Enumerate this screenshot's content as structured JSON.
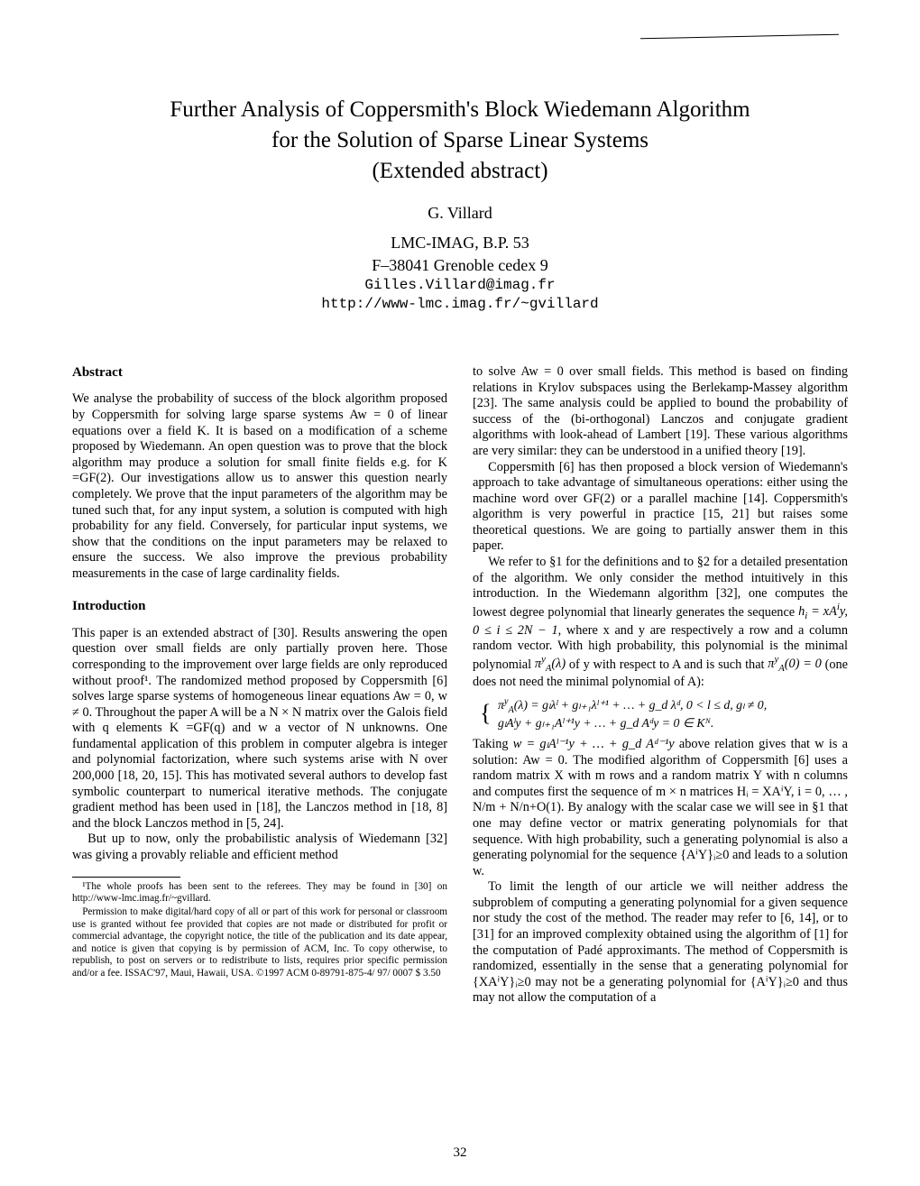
{
  "title": {
    "line1": "Further Analysis of Coppersmith's Block Wiedemann Algorithm",
    "line2": "for the Solution of Sparse Linear Systems",
    "line3": "(Extended abstract)"
  },
  "author": "G. Villard",
  "affiliation": {
    "line1": "LMC-IMAG, B.P. 53",
    "line2": "F–38041 Grenoble cedex 9",
    "email": "Gilles.Villard@imag.fr",
    "url": "http://www-lmc.imag.fr/~gvillard"
  },
  "left": {
    "abstract_heading": "Abstract",
    "abstract_p1": "We analyse the probability of success of the block algorithm proposed by Coppersmith for solving large sparse systems Aw = 0 of linear equations over a field K. It is based on a modification of a scheme proposed by Wiedemann. An open question was to prove that the block algorithm may produce a solution for small finite fields e.g. for K =GF(2). Our investigations allow us to answer this question nearly completely. We prove that the input parameters of the algorithm may be tuned such that, for any input system, a solution is computed with high probability for any field. Conversely, for particular input systems, we show that the conditions on the input parameters may be relaxed to ensure the success. We also improve the previous probability measurements in the case of large cardinality fields.",
    "intro_heading": "Introduction",
    "intro_p1": "This paper is an extended abstract of [30]. Results answering the open question over small fields are only partially proven here. Those corresponding to the improvement over large fields are only reproduced without proof¹. The randomized method proposed by Coppersmith [6] solves large sparse systems of homogeneous linear equations Aw = 0, w ≠ 0. Throughout the paper A will be a N × N matrix over the Galois field with q elements K =GF(q) and w a vector of N unknowns. One fundamental application of this problem in computer algebra is integer and polynomial factorization, where such systems arise with N over 200,000 [18, 20, 15]. This has motivated several authors to develop fast symbolic counterpart to numerical iterative methods. The conjugate gradient method has been used in [18], the Lanczos method in [18, 8] and the block Lanczos method in [5, 24].",
    "intro_p2": "But up to now, only the probabilistic analysis of Wiedemann [32] was giving a provably reliable and efficient method",
    "fn1": "¹The whole proofs has been sent to the referees. They may be found in [30] on http://www-lmc.imag.fr/~gvillard.",
    "fn2": "Permission to make digital/hard copy of all or part of this work for personal or classroom use is granted without fee provided that copies are not made or distributed for profit or commercial advantage, the copyright notice, the title of the publication and its date appear, and notice is given that copying is by permission of ACM, Inc. To copy otherwise, to republish, to post on servers or to redistribute to lists, requires prior specific permission and/or a fee. ISSAC'97, Maui, Hawaii, USA. ©1997 ACM 0-89791-875-4/ 97/ 0007 $ 3.50"
  },
  "right": {
    "p1": "to solve Aw = 0 over small fields. This method is based on finding relations in Krylov subspaces using the Berlekamp-Massey algorithm [23]. The same analysis could be applied to bound the probability of success of the (bi-orthogonal) Lanczos and conjugate gradient algorithms with look-ahead of Lambert [19]. These various algorithms are very similar: they can be understood in a unified theory [19].",
    "p2": "Coppersmith [6] has then proposed a block version of Wiedemann's approach to take advantage of simultaneous operations: either using the machine word over GF(2) or a parallel machine [14]. Coppersmith's algorithm is very powerful in practice [15, 21] but raises some theoretical questions. We are going to partially answer them in this paper.",
    "p3a": "We refer to §1 for the definitions and to §2 for a detailed presentation of the algorithm. We only consider the method intuitively in this introduction. In the Wiedemann algorithm [32], one computes the lowest degree polynomial that linearly generates the sequence ",
    "p3b": ", where x and y are respectively a row and a column random vector. With high probability, this polynomial is the minimal polynomial ",
    "p3c": " of y with respect to A and is such that ",
    "p3d": " (one does not need the minimal polynomial of A):",
    "eq1_line1_a": "π",
    "eq1_line1_rest": "(λ) = gₗλˡ + gₗ₊₁λˡ⁺¹ + … + g_d λᵈ, 0 < l ≤ d, gₗ ≠ 0,",
    "eq1_line2": "gₗAˡy + gₗ₊₁Aˡ⁺¹y + … + g_d Aᵈy = 0 ∈ Kᴺ.",
    "p4a": "Taking ",
    "p4w": "w = gₗAˡ⁻¹y + … + g_d Aᵈ⁻¹y",
    "p4b": " above relation gives that w is a solution: Aw = 0. The modified algorithm of Coppersmith [6] uses a random matrix X with m rows and a random matrix Y with n columns and computes first the sequence of m × n matrices Hᵢ = XAⁱY, i = 0, … , N/m + N/n+O(1). By analogy with the scalar case we will see in §1 that one may define vector or matrix generating polynomials for that sequence. With high probability, such a generating polynomial is also a generating polynomial for the sequence {AⁱY}ᵢ≥0 and leads to a solution w.",
    "p5": "To limit the length of our article we will neither address the subproblem of computing a generating polynomial for a given sequence nor study the cost of the method. The reader may refer to [6, 14], or to [31] for an improved complexity obtained using the algorithm of [1] for the computation of Padé approximants. The method of Coppersmith is randomized, essentially in the sense that a generating polynomial for {XAⁱY}ᵢ≥0 may not be a generating polynomial for {AⁱY}ᵢ≥0 and thus may not allow the computation of a"
  },
  "pagenum": "32",
  "colors": {
    "background": "#ffffff",
    "text": "#000000"
  }
}
